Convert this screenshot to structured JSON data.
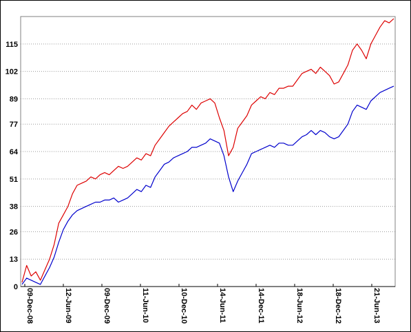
{
  "chart_data": {
    "type": "line",
    "title": "",
    "xlabel": "",
    "ylabel": "",
    "x_ticks": [
      "09-Dec-08",
      "12-Jun-09",
      "09-Dec-09",
      "11-Jun-10",
      "10-Dec-10",
      "14-Jun-11",
      "14-Dec-11",
      "18-Jun-12",
      "18-Dec-12",
      "21-Jun-13"
    ],
    "y_ticks": [
      0,
      13,
      26,
      38,
      51,
      64,
      77,
      89,
      102,
      115
    ],
    "ylim": [
      0,
      128
    ],
    "grid": true,
    "legend": "none",
    "series": [
      {
        "color": "#dd0000",
        "values": [
          2,
          10,
          5,
          7,
          3,
          8,
          13,
          20,
          30,
          34,
          38,
          44,
          48,
          49,
          50,
          52,
          51,
          53,
          54,
          53,
          55,
          57,
          56,
          57,
          59,
          61,
          60,
          63,
          62,
          67,
          70,
          73,
          76,
          78,
          80,
          82,
          83,
          86,
          84,
          87,
          88,
          89,
          87,
          80,
          74,
          62,
          66,
          75,
          78,
          81,
          86,
          88,
          90,
          89,
          92,
          91,
          94,
          94,
          95,
          95,
          98,
          101,
          102,
          103,
          101,
          104,
          102,
          100,
          96,
          97,
          101,
          105,
          112,
          115,
          112,
          108,
          115,
          119,
          123,
          126,
          125,
          127
        ]
      },
      {
        "color": "#0000cc",
        "values": [
          1,
          4,
          3,
          2,
          1,
          5,
          9,
          14,
          21,
          27,
          31,
          34,
          36,
          37,
          38,
          39,
          40,
          40,
          41,
          41,
          42,
          40,
          41,
          42,
          44,
          46,
          45,
          48,
          47,
          52,
          55,
          58,
          59,
          61,
          62,
          63,
          64,
          66,
          66,
          67,
          68,
          70,
          69,
          68,
          62,
          52,
          45,
          50,
          54,
          58,
          63,
          64,
          65,
          66,
          67,
          66,
          68,
          68,
          67,
          67,
          69,
          71,
          72,
          74,
          72,
          74,
          73,
          71,
          70,
          71,
          74,
          77,
          83,
          86,
          85,
          84,
          88,
          90,
          92,
          93,
          94,
          95
        ]
      }
    ]
  }
}
